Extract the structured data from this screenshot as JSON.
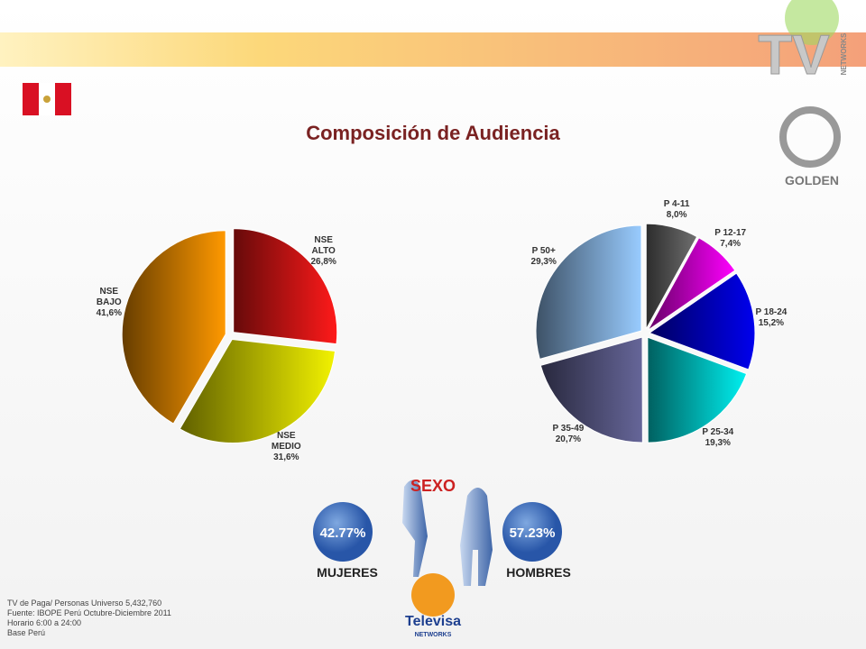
{
  "title": "Composición de Audiencia",
  "chart_data": [
    {
      "type": "pie",
      "categories": [
        "NSE ALTO",
        "NSE MEDIO",
        "NSE BAJO"
      ],
      "values": [
        26.8,
        31.6,
        41.6
      ],
      "value_labels": [
        "26,8%",
        "31,6%",
        "41,6%"
      ],
      "colors": [
        "#ff1a1a",
        "#f2f200",
        "#ff9900"
      ]
    },
    {
      "type": "pie",
      "categories": [
        "P 4-11",
        "P 12-17",
        "P 18-24",
        "P 25-34",
        "P 35-49",
        "P 50+"
      ],
      "values": [
        8.0,
        7.4,
        15.2,
        19.3,
        20.7,
        29.3
      ],
      "value_labels": [
        "8,0%",
        "7,4%",
        "15,2%",
        "19,3%",
        "20,7%",
        "29,3%"
      ],
      "colors": [
        "#707070",
        "#ff00ff",
        "#0000ee",
        "#00f0f0",
        "#666699",
        "#99ccff"
      ]
    }
  ],
  "sexo": {
    "title": "SEXO",
    "groups": [
      {
        "label": "MUJERES",
        "value_label": "42.77%"
      },
      {
        "label": "HOMBRES",
        "value_label": "57.23%"
      }
    ]
  },
  "logos": {
    "tv": "TV",
    "tv_sub": "NETWORKS",
    "golden": "GOLDEN",
    "televisa": "Televisa",
    "televisa_sub": "NETWORKS"
  },
  "footer": [
    "TV de Paga/ Personas Universo 5,432,760",
    "Fuente: IBOPE Perú Octubre-Diciembre 2011",
    "Horario 6:00 a 24:00",
    "Base Perú"
  ]
}
